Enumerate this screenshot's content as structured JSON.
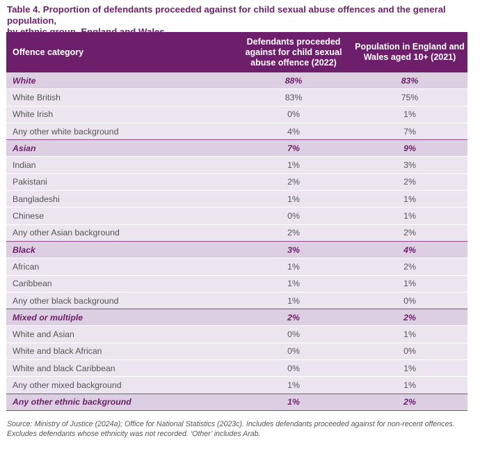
{
  "title_line1": "Table 4. Proportion of defendants proceeded against for child sexual abuse offences and the general population,",
  "title_line2": "by ethnic group, England and Wales",
  "headers": {
    "category": "Offence category",
    "defendants_l1": "Defendants proceeded",
    "defendants_l2": "against for child sexual",
    "defendants_l3": "abuse offence (2022)",
    "population_l1": "Population in England and",
    "population_l2": "Wales aged 10+ (2021)"
  },
  "rows": [
    {
      "label": "White",
      "defendants": "88%",
      "population": "83%",
      "type": "category"
    },
    {
      "label": "White British",
      "defendants": "83%",
      "population": "75%",
      "type": "sub"
    },
    {
      "label": "White Irish",
      "defendants": "0%",
      "population": "1%",
      "type": "sub"
    },
    {
      "label": "Any other white background",
      "defendants": "4%",
      "population": "7%",
      "type": "sub"
    },
    {
      "label": "Asian",
      "defendants": "7%",
      "population": "9%",
      "type": "category"
    },
    {
      "label": "Indian",
      "defendants": "1%",
      "population": "3%",
      "type": "sub"
    },
    {
      "label": "Pakistani",
      "defendants": "2%",
      "population": "2%",
      "type": "sub"
    },
    {
      "label": "Bangladeshi",
      "defendants": "1%",
      "population": "1%",
      "type": "sub"
    },
    {
      "label": "Chinese",
      "defendants": "0%",
      "population": "1%",
      "type": "sub"
    },
    {
      "label": "Any other Asian background",
      "defendants": "2%",
      "population": "2%",
      "type": "sub"
    },
    {
      "label": "Black",
      "defendants": "3%",
      "population": "4%",
      "type": "category"
    },
    {
      "label": "African",
      "defendants": "1%",
      "population": "2%",
      "type": "sub"
    },
    {
      "label": "Caribbean",
      "defendants": "1%",
      "population": "1%",
      "type": "sub"
    },
    {
      "label": "Any other black background",
      "defendants": "1%",
      "population": "0%",
      "type": "sub"
    },
    {
      "label": "Mixed or multiple",
      "defendants": "2%",
      "population": "2%",
      "type": "category"
    },
    {
      "label": "White and Asian",
      "defendants": "0%",
      "population": "1%",
      "type": "sub"
    },
    {
      "label": "White and black African",
      "defendants": "0%",
      "population": "0%",
      "type": "sub"
    },
    {
      "label": "White and black Caribbean",
      "defendants": "0%",
      "population": "1%",
      "type": "sub"
    },
    {
      "label": "Any other mixed background",
      "defendants": "1%",
      "population": "1%",
      "type": "sub"
    },
    {
      "label": "Any other ethnic background",
      "defendants": "1%",
      "population": "2%",
      "type": "category"
    }
  ],
  "footnote_line1": "Source: Ministry of Justice (2024a); Office for National Statistics (2023c). Includes defendants proceeded against for non-recent offences.",
  "footnote_line2": "Excludes defendants whose ethnicity was not recorded. ‘Other’ includes Arab.",
  "colors": {
    "header_bg": "#6d1f6b",
    "category_bg": "#dccfe1",
    "sub_bg": "#ece4ef",
    "accent_text": "#6d1f6b"
  }
}
